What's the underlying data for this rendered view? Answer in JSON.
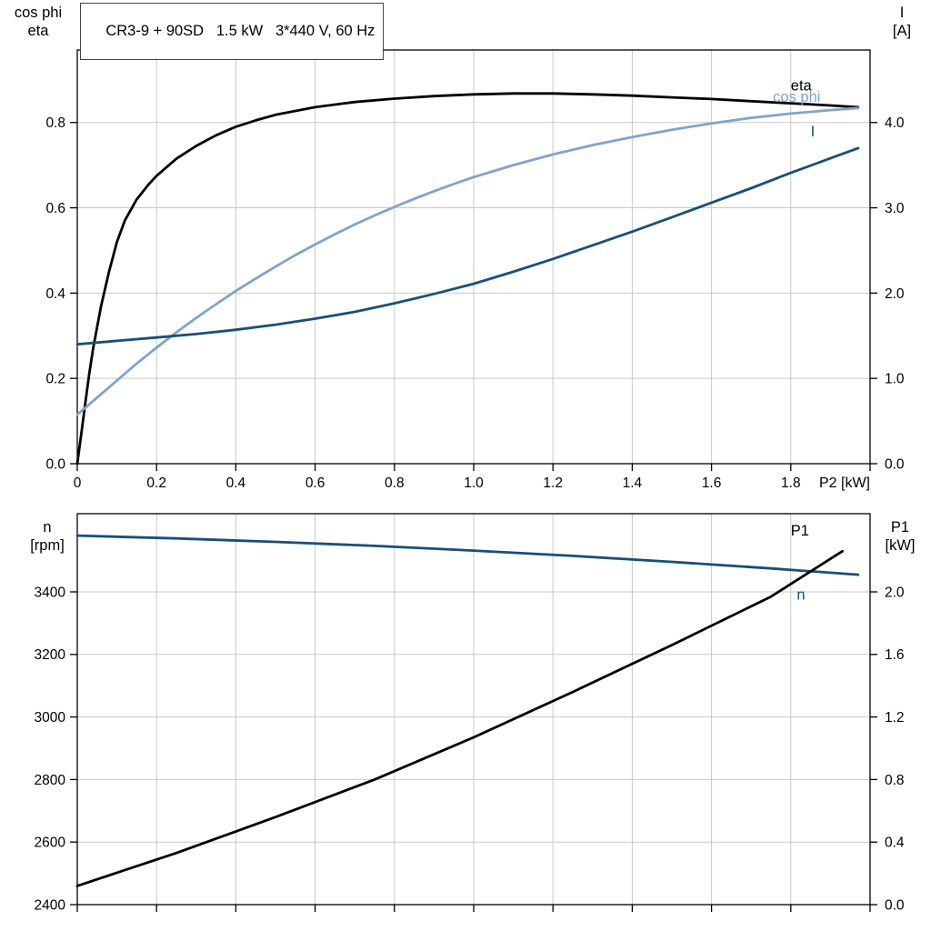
{
  "colors": {
    "curve_black": "#000000",
    "curve_light_blue": "#7fa4cb",
    "curve_dark_blue": "#174f7c",
    "grid": "#c9c9c9",
    "axis": "#000000",
    "background": "#ffffff"
  },
  "chart_data": [
    {
      "type": "line",
      "title": "CR3-9 + 90SD   1.5 kW   3*440 V, 60 Hz",
      "xlabel": "P2 [kW]",
      "xlim": [
        0,
        2
      ],
      "xticks": [
        0,
        0.2,
        0.4,
        0.6,
        0.8,
        1,
        1.2,
        1.4,
        1.6,
        1.8,
        2
      ],
      "xtick_labels": [
        "0",
        "0.2",
        "0.4",
        "0.6",
        "0.8",
        "1.0",
        "1.2",
        "1.4",
        "1.6",
        "1.8",
        ""
      ],
      "grid": true,
      "legend_position": "inline-labels",
      "left_axis": {
        "label_lines": [
          "cos phi",
          "eta"
        ],
        "lim": [
          0,
          0.97
        ],
        "ticks": [
          0,
          0.2,
          0.4,
          0.6,
          0.8
        ],
        "tick_labels": [
          "0.0",
          "0.2",
          "0.4",
          "0.6",
          "0.8"
        ]
      },
      "right_axis": {
        "label_lines": [
          "I",
          "[A]"
        ],
        "lim": [
          0,
          4.85
        ],
        "ticks": [
          0,
          1,
          2,
          3,
          4
        ],
        "tick_labels": [
          "0.0",
          "1.0",
          "2.0",
          "3.0",
          "4.0"
        ]
      },
      "series": [
        {
          "name": "eta",
          "axis": "left",
          "color_key": "curve_black",
          "label_pos": [
            1.8,
            0.875
          ],
          "points": [
            [
              0,
              0
            ],
            [
              0.01,
              0.07
            ],
            [
              0.02,
              0.14
            ],
            [
              0.03,
              0.21
            ],
            [
              0.04,
              0.27
            ],
            [
              0.05,
              0.32
            ],
            [
              0.06,
              0.37
            ],
            [
              0.08,
              0.45
            ],
            [
              0.1,
              0.52
            ],
            [
              0.12,
              0.57
            ],
            [
              0.15,
              0.62
            ],
            [
              0.18,
              0.655
            ],
            [
              0.2,
              0.675
            ],
            [
              0.25,
              0.715
            ],
            [
              0.3,
              0.745
            ],
            [
              0.35,
              0.77
            ],
            [
              0.4,
              0.79
            ],
            [
              0.45,
              0.805
            ],
            [
              0.5,
              0.818
            ],
            [
              0.6,
              0.836
            ],
            [
              0.7,
              0.848
            ],
            [
              0.8,
              0.856
            ],
            [
              0.9,
              0.862
            ],
            [
              1,
              0.866
            ],
            [
              1.1,
              0.868
            ],
            [
              1.2,
              0.868
            ],
            [
              1.3,
              0.866
            ],
            [
              1.4,
              0.863
            ],
            [
              1.5,
              0.859
            ],
            [
              1.6,
              0.855
            ],
            [
              1.7,
              0.85
            ],
            [
              1.8,
              0.845
            ],
            [
              1.9,
              0.84
            ],
            [
              1.97,
              0.836
            ]
          ]
        },
        {
          "name": "cos phi",
          "axis": "left",
          "color_key": "curve_light_blue",
          "label_pos": [
            1.755,
            0.849
          ],
          "points": [
            [
              0,
              0.115
            ],
            [
              0.05,
              0.155
            ],
            [
              0.1,
              0.195
            ],
            [
              0.15,
              0.235
            ],
            [
              0.2,
              0.272
            ],
            [
              0.25,
              0.308
            ],
            [
              0.3,
              0.342
            ],
            [
              0.35,
              0.374
            ],
            [
              0.4,
              0.405
            ],
            [
              0.45,
              0.434
            ],
            [
              0.5,
              0.462
            ],
            [
              0.55,
              0.489
            ],
            [
              0.6,
              0.514
            ],
            [
              0.65,
              0.538
            ],
            [
              0.7,
              0.561
            ],
            [
              0.75,
              0.582
            ],
            [
              0.8,
              0.602
            ],
            [
              0.85,
              0.621
            ],
            [
              0.9,
              0.639
            ],
            [
              0.95,
              0.656
            ],
            [
              1,
              0.672
            ],
            [
              1.1,
              0.7
            ],
            [
              1.2,
              0.725
            ],
            [
              1.3,
              0.747
            ],
            [
              1.4,
              0.766
            ],
            [
              1.5,
              0.783
            ],
            [
              1.6,
              0.798
            ],
            [
              1.7,
              0.811
            ],
            [
              1.8,
              0.821
            ],
            [
              1.9,
              0.829
            ],
            [
              1.97,
              0.834
            ]
          ]
        },
        {
          "name": "I",
          "axis": "right",
          "color_key": "curve_dark_blue",
          "label_pos": [
            1.85,
            3.84
          ],
          "points": [
            [
              0,
              1.4
            ],
            [
              0.1,
              1.44
            ],
            [
              0.2,
              1.48
            ],
            [
              0.3,
              1.52
            ],
            [
              0.4,
              1.57
            ],
            [
              0.5,
              1.63
            ],
            [
              0.6,
              1.7
            ],
            [
              0.7,
              1.78
            ],
            [
              0.8,
              1.88
            ],
            [
              0.9,
              1.99
            ],
            [
              1,
              2.11
            ],
            [
              1.1,
              2.25
            ],
            [
              1.2,
              2.4
            ],
            [
              1.3,
              2.56
            ],
            [
              1.4,
              2.72
            ],
            [
              1.5,
              2.89
            ],
            [
              1.6,
              3.06
            ],
            [
              1.7,
              3.23
            ],
            [
              1.8,
              3.41
            ],
            [
              1.9,
              3.58
            ],
            [
              1.97,
              3.7
            ]
          ]
        }
      ]
    },
    {
      "type": "line",
      "title": "",
      "xlabel": "",
      "xlim": [
        0,
        2
      ],
      "xticks": [
        0,
        0.2,
        0.4,
        0.6,
        0.8,
        1,
        1.2,
        1.4,
        1.6,
        1.8,
        2
      ],
      "xtick_labels": [],
      "grid": true,
      "legend_position": "inline-labels",
      "left_axis": {
        "label_lines": [
          "n",
          "[rpm]"
        ],
        "lim": [
          2400,
          3650
        ],
        "ticks": [
          2400,
          2600,
          2800,
          3000,
          3200,
          3400
        ],
        "tick_labels": [
          "2400",
          "2600",
          "2800",
          "3000",
          "3200",
          "3400"
        ]
      },
      "right_axis": {
        "label_lines": [
          "P1",
          "[kW]"
        ],
        "lim": [
          0,
          2.5
        ],
        "ticks": [
          0,
          0.4,
          0.8,
          1.2,
          1.6,
          2
        ],
        "tick_labels": [
          "0.0",
          "0.4",
          "0.8",
          "1.2",
          "1.6",
          "2.0"
        ]
      },
      "series": [
        {
          "name": "n",
          "axis": "left",
          "color_key": "curve_dark_blue",
          "label_pos": [
            1.815,
            3375
          ],
          "points": [
            [
              0,
              3580
            ],
            [
              0.25,
              3571
            ],
            [
              0.5,
              3560
            ],
            [
              0.75,
              3547
            ],
            [
              1,
              3532
            ],
            [
              1.25,
              3515
            ],
            [
              1.5,
              3496
            ],
            [
              1.75,
              3475
            ],
            [
              1.97,
              3455
            ]
          ]
        },
        {
          "name": "P1",
          "axis": "right",
          "color_key": "curve_black",
          "label_pos": [
            1.8,
            2.36
          ],
          "points": [
            [
              0,
              0.12
            ],
            [
              0.25,
              0.33
            ],
            [
              0.5,
              0.56
            ],
            [
              0.75,
              0.8
            ],
            [
              1,
              1.07
            ],
            [
              1.25,
              1.36
            ],
            [
              1.5,
              1.66
            ],
            [
              1.75,
              1.97
            ],
            [
              1.93,
              2.26
            ]
          ]
        }
      ]
    }
  ]
}
